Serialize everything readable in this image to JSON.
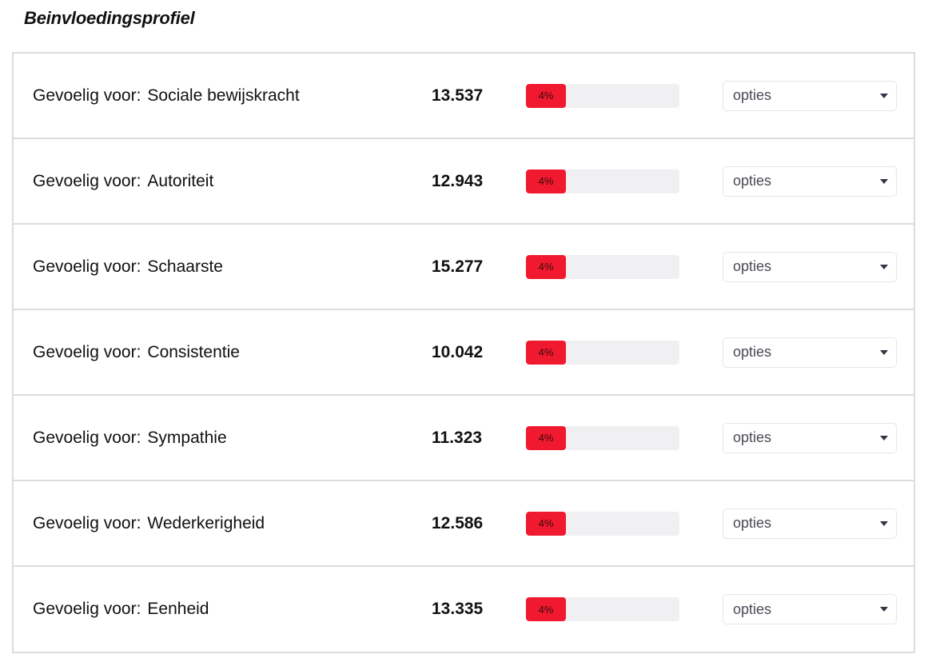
{
  "header": {
    "title": "Beinvloedingsprofiel"
  },
  "theme": {
    "accent": "#f0192f",
    "track": "#f0f0f2",
    "border": "#dcdcdc"
  },
  "rows": [
    {
      "prefix": "Gevoelig voor:",
      "label": "Sociale bewijskracht",
      "value": "13.537",
      "percent_label": "4%",
      "percent": 4,
      "select_value": "opties"
    },
    {
      "prefix": "Gevoelig voor:",
      "label": "Autoriteit",
      "value": "12.943",
      "percent_label": "4%",
      "percent": 4,
      "select_value": "opties"
    },
    {
      "prefix": "Gevoelig voor:",
      "label": "Schaarste",
      "value": "15.277",
      "percent_label": "4%",
      "percent": 4,
      "select_value": "opties"
    },
    {
      "prefix": "Gevoelig voor:",
      "label": "Consistentie",
      "value": "10.042",
      "percent_label": "4%",
      "percent": 4,
      "select_value": "opties"
    },
    {
      "prefix": "Gevoelig voor:",
      "label": "Sympathie",
      "value": "11.323",
      "percent_label": "4%",
      "percent": 4,
      "select_value": "opties"
    },
    {
      "prefix": "Gevoelig voor:",
      "label": "Wederkerigheid",
      "value": "12.586",
      "percent_label": "4%",
      "percent": 4,
      "select_value": "opties"
    },
    {
      "prefix": "Gevoelig voor:",
      "label": "Eenheid",
      "value": "13.335",
      "percent_label": "4%",
      "percent": 4,
      "select_value": "opties"
    }
  ]
}
